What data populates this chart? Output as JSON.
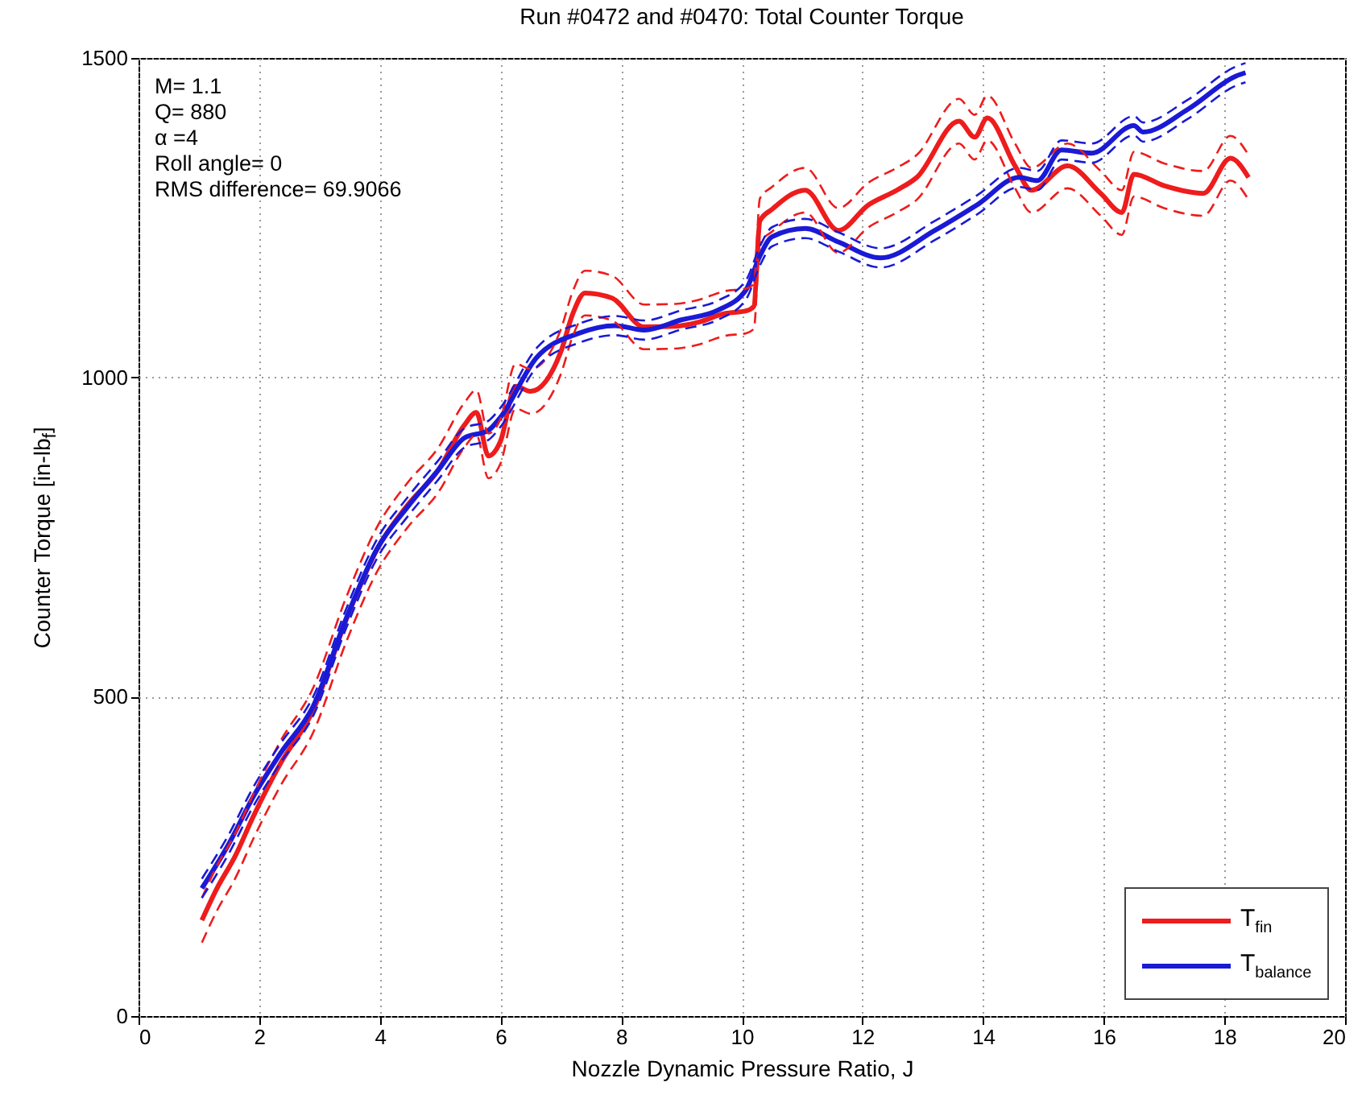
{
  "chart_data": {
    "type": "line",
    "title": "Run #0472 and #0470: Total Counter Torque",
    "xlabel": "Nozzle Dynamic Pressure Ratio, J",
    "ylabel": "Counter Torque [in-lb$_{f}$]",
    "annotations": [
      "M= 1.1",
      "Q= 880",
      "α =4",
      "Roll angle= 0",
      "RMS difference= 69.9066"
    ],
    "xlim": [
      0,
      20
    ],
    "xticks": [
      0,
      2,
      4,
      6,
      8,
      10,
      12,
      14,
      16,
      18,
      20
    ],
    "ylim": [
      0,
      1500
    ],
    "yticks": [
      0,
      500,
      1000,
      1500
    ],
    "grid": true,
    "legend": "bottom right",
    "series": [
      {
        "name": "T$_{fin}$",
        "color": "#ee1c1c",
        "line_style": "solid",
        "x": [
          1.05,
          1.3,
          1.6,
          1.9,
          2.35,
          2.9,
          3.44,
          3.95,
          4.46,
          4.97,
          5.4,
          5.6,
          5.8,
          6.0,
          6.25,
          6.5,
          7.0,
          7.2,
          7.4,
          7.85,
          8.38,
          8.9,
          9.27,
          9.72,
          10.07,
          10.2,
          10.3,
          10.5,
          11.05,
          11.6,
          12.1,
          12.57,
          12.9,
          13.6,
          13.86,
          14.07,
          14.53,
          14.8,
          15.4,
          15.95,
          16.3,
          16.5,
          17.0,
          17.65,
          18.1,
          18.4
        ],
        "values": [
          150,
          200,
          250,
          312,
          395,
          480,
          620,
          730,
          800,
          855,
          925,
          945,
          877,
          900,
          986,
          978,
          1040,
          1100,
          1132,
          1124,
          1079,
          1080,
          1086,
          1100,
          1104,
          1111,
          1245,
          1263,
          1293,
          1230,
          1270,
          1293,
          1313,
          1401,
          1376,
          1406,
          1331,
          1293,
          1331,
          1288,
          1258,
          1318,
          1300,
          1288,
          1343,
          1313
        ]
      },
      {
        "name": "T$_{balance}$",
        "color": "#1a1ad6",
        "line_style": "solid",
        "x": [
          1.05,
          1.5,
          1.9,
          2.35,
          2.9,
          3.44,
          3.95,
          4.46,
          4.97,
          5.4,
          5.8,
          5.98,
          6.6,
          7.3,
          7.9,
          8.38,
          9.0,
          9.6,
          10.07,
          10.3,
          10.5,
          11.05,
          11.6,
          12.3,
          13.2,
          13.9,
          14.6,
          14.9,
          15.3,
          15.8,
          16.5,
          16.65,
          17.4,
          18.2,
          18.35
        ],
        "values": [
          200,
          270,
          343,
          411,
          486,
          622,
          731,
          797,
          855,
          905,
          917,
          935,
          1031,
          1069,
          1081,
          1074,
          1090,
          1105,
          1137,
          1190,
          1220,
          1233,
          1212,
          1187,
          1230,
          1270,
          1313,
          1308,
          1356,
          1351,
          1394,
          1384,
          1420,
          1472,
          1477
        ]
      },
      {
        "color": "#ee1c1c",
        "line_style": "dashed",
        "x": [
          1.05,
          1.3,
          1.6,
          1.9,
          2.35,
          2.9,
          3.44,
          3.95,
          4.46,
          4.97,
          5.4,
          5.6,
          5.8,
          6.0,
          6.25,
          6.5,
          7.0,
          7.2,
          7.4,
          7.85,
          8.38,
          8.9,
          9.27,
          9.72,
          10.07,
          10.2,
          10.3,
          10.5,
          11.05,
          11.6,
          12.1,
          12.57,
          12.9,
          13.6,
          13.86,
          14.07,
          14.53,
          14.8,
          15.4,
          15.95,
          16.3,
          16.5,
          17.0,
          17.65,
          18.1,
          18.4
        ],
        "values": [
          115,
          165,
          215,
          277,
          360,
          445,
          585,
          695,
          765,
          820,
          890,
          910,
          842,
          865,
          951,
          943,
          1005,
          1065,
          1097,
          1089,
          1044,
          1045,
          1051,
          1065,
          1069,
          1076,
          1210,
          1228,
          1258,
          1195,
          1235,
          1258,
          1278,
          1366,
          1341,
          1371,
          1296,
          1258,
          1296,
          1253,
          1223,
          1283,
          1265,
          1253,
          1308,
          1278
        ]
      },
      {
        "color": "#ee1c1c",
        "line_style": "dashed",
        "x": [
          1.05,
          1.3,
          1.6,
          1.9,
          2.35,
          2.9,
          3.44,
          3.95,
          4.46,
          4.97,
          5.4,
          5.6,
          5.8,
          6.0,
          6.25,
          6.5,
          7.0,
          7.2,
          7.4,
          7.85,
          8.38,
          8.9,
          9.27,
          9.72,
          10.07,
          10.2,
          10.3,
          10.5,
          11.05,
          11.6,
          12.1,
          12.57,
          12.9,
          13.6,
          13.86,
          14.07,
          14.53,
          14.8,
          15.4,
          15.95,
          16.3,
          16.5,
          17.0,
          17.65,
          18.1,
          18.4
        ],
        "values": [
          185,
          235,
          285,
          347,
          430,
          515,
          655,
          765,
          835,
          890,
          960,
          980,
          912,
          935,
          1021,
          1013,
          1075,
          1135,
          1167,
          1159,
          1114,
          1115,
          1121,
          1135,
          1139,
          1146,
          1280,
          1298,
          1328,
          1265,
          1305,
          1328,
          1348,
          1436,
          1411,
          1441,
          1366,
          1328,
          1366,
          1323,
          1293,
          1353,
          1335,
          1323,
          1378,
          1348
        ]
      },
      {
        "color": "#1a1ad6",
        "line_style": "dashed",
        "x": [
          1.05,
          1.5,
          1.9,
          2.35,
          2.9,
          3.44,
          3.95,
          4.46,
          4.97,
          5.4,
          5.8,
          5.98,
          6.6,
          7.3,
          7.9,
          8.38,
          9.0,
          9.6,
          10.07,
          10.3,
          10.5,
          11.05,
          11.6,
          12.3,
          13.2,
          13.9,
          14.6,
          14.9,
          15.3,
          15.8,
          16.5,
          16.65,
          17.4,
          18.2,
          18.35
        ],
        "values": [
          185,
          255,
          328,
          396,
          471,
          607,
          716,
          782,
          840,
          890,
          902,
          920,
          1016,
          1054,
          1066,
          1059,
          1075,
          1090,
          1122,
          1175,
          1205,
          1218,
          1197,
          1172,
          1215,
          1255,
          1298,
          1293,
          1341,
          1336,
          1379,
          1369,
          1405,
          1457,
          1462
        ]
      },
      {
        "color": "#1a1ad6",
        "line_style": "dashed",
        "x": [
          1.05,
          1.5,
          1.9,
          2.35,
          2.9,
          3.44,
          3.95,
          4.46,
          4.97,
          5.4,
          5.8,
          5.98,
          6.6,
          7.3,
          7.9,
          8.38,
          9.0,
          9.6,
          10.07,
          10.3,
          10.5,
          11.05,
          11.6,
          12.3,
          13.2,
          13.9,
          14.6,
          14.9,
          15.3,
          15.8,
          16.5,
          16.65,
          17.4,
          18.2,
          18.35
        ],
        "values": [
          215,
          285,
          358,
          426,
          501,
          637,
          746,
          812,
          870,
          920,
          932,
          950,
          1046,
          1084,
          1096,
          1089,
          1105,
          1120,
          1152,
          1205,
          1235,
          1248,
          1227,
          1202,
          1245,
          1285,
          1328,
          1323,
          1371,
          1366,
          1409,
          1399,
          1435,
          1487,
          1492
        ]
      }
    ]
  }
}
